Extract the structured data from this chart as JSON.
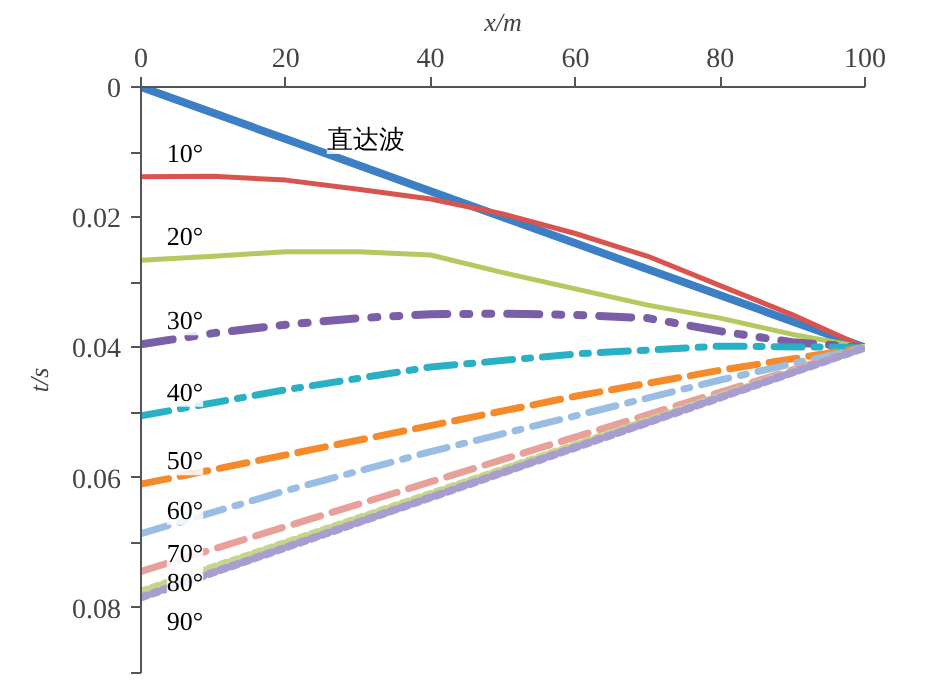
{
  "chart_data": {
    "type": "line",
    "xlabel": "x/m",
    "ylabel": "t/s",
    "xlim": [
      0,
      100
    ],
    "ylim": [
      0.09,
      0
    ],
    "xticks": [
      0,
      20,
      40,
      60,
      80,
      100
    ],
    "yticks": [
      0,
      {
        "value": 0.01,
        "label": null
      },
      0.02,
      {
        "value": 0.03,
        "label": null
      },
      0.04,
      {
        "value": 0.05,
        "label": null
      },
      0.06,
      {
        "value": 0.07,
        "label": null
      },
      0.08,
      {
        "value": 0.09,
        "label": null
      }
    ],
    "grid": false,
    "marker": "none",
    "series": [
      {
        "name": "直达波",
        "color": "#3d7fc4",
        "line_style": "solid",
        "x": [
          0,
          20,
          40,
          60,
          80,
          100
        ],
        "values": [
          0,
          0.008,
          0.016,
          0.024,
          0.032,
          0.04
        ]
      },
      {
        "name": "10°",
        "color": "#d9534f",
        "line_style": "solid",
        "x": [
          0,
          10,
          20,
          30,
          40,
          50,
          60,
          70,
          80,
          90,
          100
        ],
        "values": [
          0.0138,
          0.0137,
          0.0143,
          0.0157,
          0.0172,
          0.0195,
          0.0225,
          0.026,
          0.0305,
          0.035,
          0.04
        ]
      },
      {
        "name": "20°",
        "color": "#b5c960",
        "line_style": "solid",
        "x": [
          0,
          10,
          20,
          30,
          40,
          50,
          60,
          70,
          80,
          90,
          100
        ],
        "values": [
          0.0266,
          0.026,
          0.0253,
          0.0253,
          0.0258,
          0.0285,
          0.031,
          0.0335,
          0.0355,
          0.038,
          0.04
        ]
      },
      {
        "name": "30°",
        "color": "#7b5ea8",
        "line_style": "dashdotdot",
        "x": [
          0,
          10,
          20,
          30,
          40,
          50,
          60,
          70,
          80,
          90,
          100
        ],
        "values": [
          0.0395,
          0.0378,
          0.0365,
          0.0355,
          0.0349,
          0.0348,
          0.035,
          0.0355,
          0.0375,
          0.0392,
          0.04
        ]
      },
      {
        "name": "40°",
        "color": "#2ab0c5",
        "line_style": "dashdot",
        "x": [
          0,
          20,
          40,
          60,
          80,
          100
        ],
        "values": [
          0.0505,
          0.0465,
          0.043,
          0.041,
          0.0398,
          0.04
        ]
      },
      {
        "name": "50°",
        "color": "#f58a2a",
        "line_style": "dashed",
        "x": [
          0,
          20,
          40,
          60,
          80,
          100
        ],
        "values": [
          0.061,
          0.0565,
          0.052,
          0.0475,
          0.0435,
          0.04
        ]
      },
      {
        "name": "60°",
        "color": "#99bde3",
        "line_style": "dashdot",
        "x": [
          0,
          20,
          40,
          60,
          80,
          100
        ],
        "values": [
          0.0686,
          0.062,
          0.056,
          0.0505,
          0.045,
          0.04
        ]
      },
      {
        "name": "70°",
        "color": "#e8a09a",
        "line_style": "dashed",
        "x": [
          0,
          100
        ],
        "values": [
          0.0744,
          0.04
        ]
      },
      {
        "name": "80°",
        "color": "#c5d68a",
        "line_style": "dotted",
        "x": [
          0,
          100
        ],
        "values": [
          0.0775,
          0.04
        ]
      },
      {
        "name": "90°",
        "color": "#a89cd0",
        "line_style": "dotted",
        "x": [
          0,
          100
        ],
        "values": [
          0.0784,
          0.04
        ]
      }
    ]
  }
}
